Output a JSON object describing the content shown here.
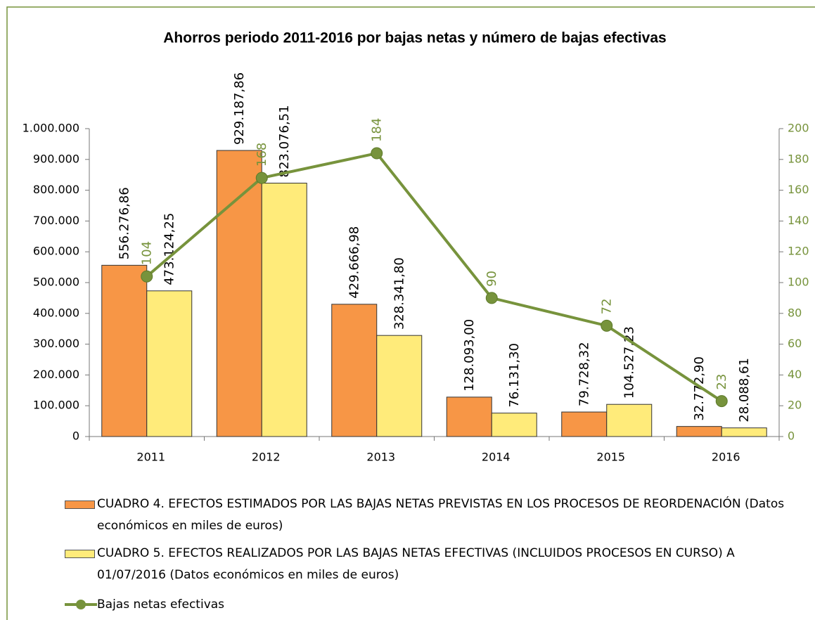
{
  "chart_data": {
    "type": "bar_line",
    "title": "Ahorros periodo 2011-2016 por bajas netas y  número de bajas efectivas",
    "categories": [
      "2011",
      "2012",
      "2013",
      "2014",
      "2015",
      "2016"
    ],
    "series": [
      {
        "name": "CUADRO 4. EFECTOS ESTIMADOS POR LAS BAJAS NETAS PREVISTAS EN LOS PROCESOS DE REORDENACIÓN (Datos económicos en miles de euros)",
        "color": "#f79646",
        "type": "bar",
        "values": [
          556276.86,
          929187.86,
          429666.98,
          128093.0,
          79728.32,
          32772.9
        ],
        "value_labels": [
          "556.276,86",
          "929.187,86",
          "429.666,98",
          "128.093,00",
          "79.728,32",
          "32.772,90"
        ]
      },
      {
        "name": "CUADRO 5. EFECTOS REALIZADOS POR LAS BAJAS NETAS EFECTIVAS (INCLUIDOS PROCESOS EN CURSO) A 01/07/2016 (Datos económicos en miles de euros)",
        "color": "#ffeb7a",
        "type": "bar",
        "values": [
          473124.25,
          823076.51,
          328341.8,
          76131.3,
          104527.23,
          28088.61
        ],
        "value_labels": [
          "473.124,25",
          "823.076,51",
          "328.341,80",
          "76.131,30",
          "104.527,23",
          "28.088,61"
        ]
      },
      {
        "name": "Bajas netas efectivas",
        "color": "#77933c",
        "type": "line",
        "axis": "y2",
        "values": [
          104,
          168,
          184,
          90,
          72,
          23
        ]
      }
    ],
    "ylim": [
      0,
      1000000
    ],
    "yticks": [
      0,
      {
        "value": 100000,
        "label": "100.000"
      },
      {
        "value": 200000,
        "label": "200.000"
      },
      {
        "value": 300000,
        "label": "300.000"
      },
      {
        "value": 400000,
        "label": "400.000"
      },
      {
        "value": 500000,
        "label": "500.000"
      },
      {
        "value": 600000,
        "label": "600.000"
      },
      {
        "value": 700000,
        "label": "700.000"
      },
      {
        "value": 800000,
        "label": "800.000"
      },
      {
        "value": 900000,
        "label": "900.000"
      },
      {
        "value": 1000000,
        "label": "1.000.000"
      }
    ],
    "y2lim": [
      0,
      200
    ],
    "y2ticks": [
      0,
      20,
      40,
      60,
      80,
      100,
      120,
      140,
      160,
      180,
      200
    ],
    "legend": "bottom"
  }
}
